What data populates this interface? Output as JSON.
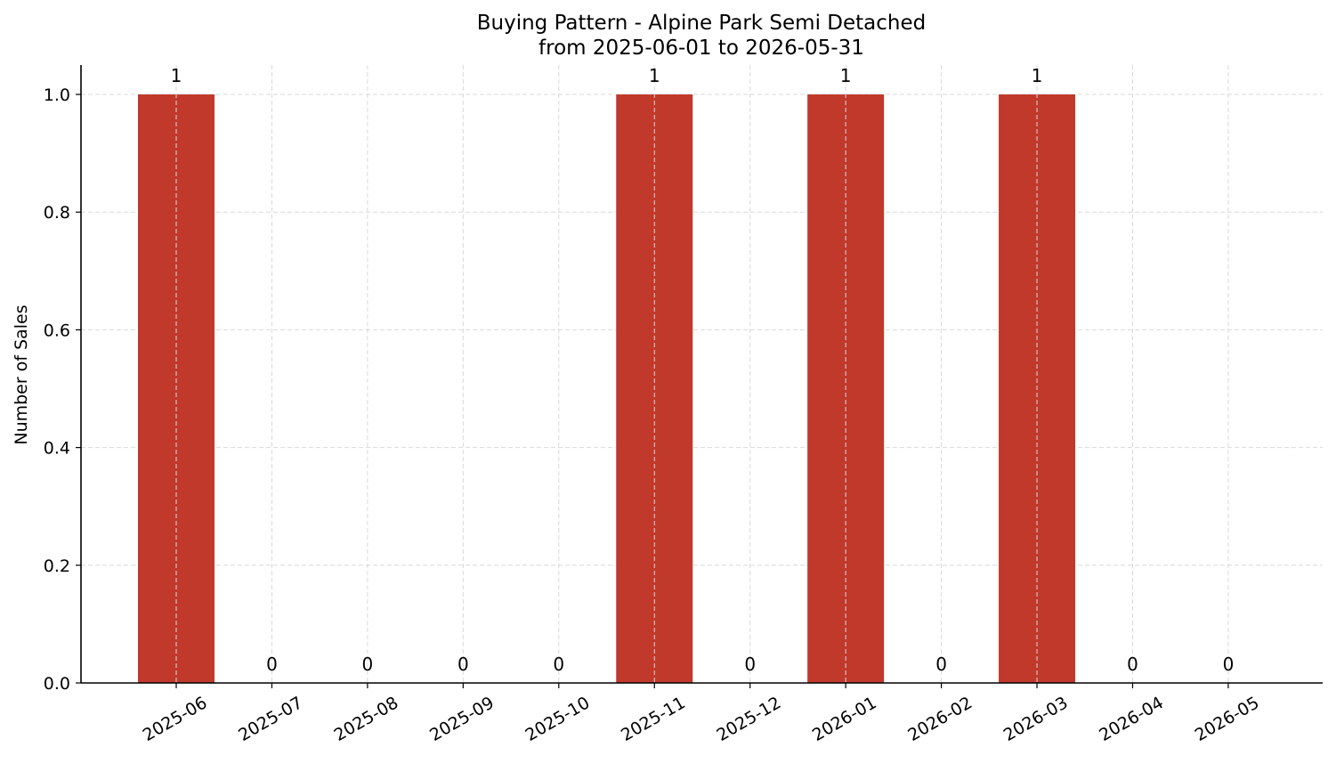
{
  "chart_data": {
    "type": "bar",
    "title": "Buying Pattern - Alpine Park Semi Detached",
    "subtitle": "from 2025-06-01 to 2026-05-31",
    "xlabel": "",
    "ylabel": "Number of Sales",
    "categories": [
      "2025-06",
      "2025-07",
      "2025-08",
      "2025-09",
      "2025-10",
      "2025-11",
      "2025-12",
      "2026-01",
      "2026-02",
      "2026-03",
      "2026-04",
      "2026-05"
    ],
    "values": [
      1,
      0,
      0,
      0,
      0,
      1,
      0,
      1,
      0,
      1,
      0,
      0
    ],
    "data_labels": [
      "1",
      "0",
      "0",
      "0",
      "0",
      "1",
      "0",
      "1",
      "0",
      "1",
      "0",
      "0"
    ],
    "ylim": [
      0,
      1.05
    ],
    "yticks": [
      0.0,
      0.2,
      0.4,
      0.6,
      0.8,
      1.0
    ],
    "ytick_labels": [
      "0.0",
      "0.2",
      "0.4",
      "0.6",
      "0.8",
      "1.0"
    ],
    "grid": true,
    "grid_style": "dashed",
    "legend": "none",
    "colors": {
      "bar": "#c0392b",
      "grid": "#d9d9d9",
      "axis": "#000000",
      "text": "#000000"
    }
  }
}
